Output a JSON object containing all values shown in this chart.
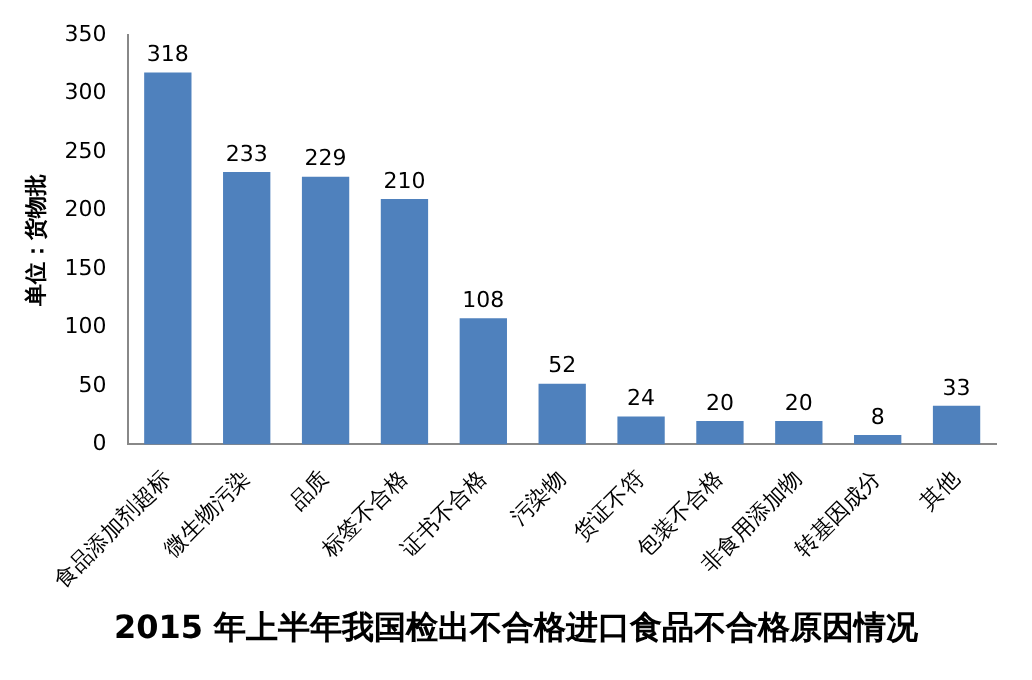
{
  "chart_data": {
    "type": "bar",
    "title": "2015 年上半年我国检出不合格进口食品不合格原因情况",
    "ylabel": "单位：货物批",
    "categories": [
      "食品添加剂超标",
      "微生物污染",
      "品质",
      "标签不合格",
      "证书不合格",
      "污染物",
      "货证不符",
      "包装不合格",
      "非食用添加物",
      "转基因成分",
      "其他"
    ],
    "values": [
      318,
      233,
      229,
      210,
      108,
      52,
      24,
      20,
      20,
      8,
      33
    ],
    "color": "#4f81bd",
    "ylim": [
      0,
      350
    ],
    "yticks": [
      0,
      50,
      100,
      150,
      200,
      250,
      300,
      350
    ],
    "grid": false,
    "data_labels": true,
    "legend": false
  }
}
